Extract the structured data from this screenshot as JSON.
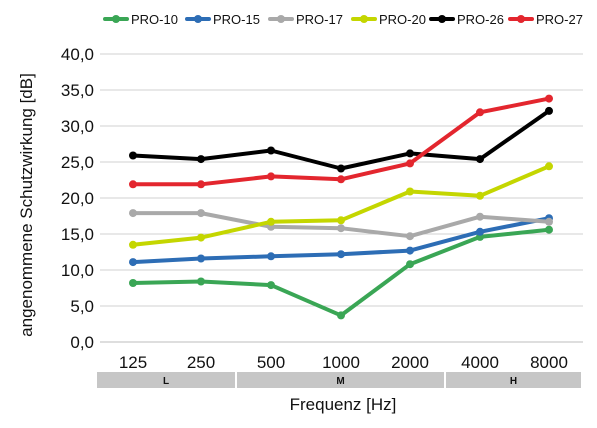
{
  "chart_data": {
    "type": "line",
    "title": "",
    "xlabel": "Frequenz [Hz]",
    "ylabel": "angenommene Schutzwirkung [dB]",
    "categories": [
      "125",
      "250",
      "500",
      "1000",
      "2000",
      "4000",
      "8000"
    ],
    "ylim": [
      0,
      40
    ],
    "yticks": [
      "0,0",
      "5,0",
      "10,0",
      "15,0",
      "20,0",
      "25,0",
      "30,0",
      "35,0",
      "40,0"
    ],
    "grid": "horizontal",
    "legend_position": "top",
    "bands": [
      {
        "label": "L",
        "from": 0,
        "to": 1
      },
      {
        "label": "M",
        "from": 2,
        "to": 4
      },
      {
        "label": "H",
        "from": 5,
        "to": 6
      }
    ],
    "series": [
      {
        "name": "PRO-10",
        "color": "#3aa655",
        "values": [
          8.2,
          8.4,
          7.9,
          3.7,
          10.8,
          14.6,
          15.6
        ]
      },
      {
        "name": "PRO-15",
        "color": "#2d6db5",
        "values": [
          11.1,
          11.6,
          11.9,
          12.2,
          12.7,
          15.3,
          17.2
        ]
      },
      {
        "name": "PRO-17",
        "color": "#a9a9a9",
        "values": [
          17.9,
          17.9,
          16.0,
          15.8,
          14.7,
          17.4,
          16.7
        ]
      },
      {
        "name": "PRO-20",
        "color": "#c4d600",
        "values": [
          13.5,
          14.5,
          16.7,
          16.9,
          20.9,
          20.3,
          24.4
        ]
      },
      {
        "name": "PRO-26",
        "color": "#000000",
        "values": [
          25.9,
          25.4,
          26.6,
          24.1,
          26.2,
          25.4,
          32.1
        ]
      },
      {
        "name": "PRO-27",
        "color": "#e3262e",
        "values": [
          21.9,
          21.9,
          23.0,
          22.6,
          24.8,
          31.9,
          33.8
        ]
      }
    ]
  }
}
